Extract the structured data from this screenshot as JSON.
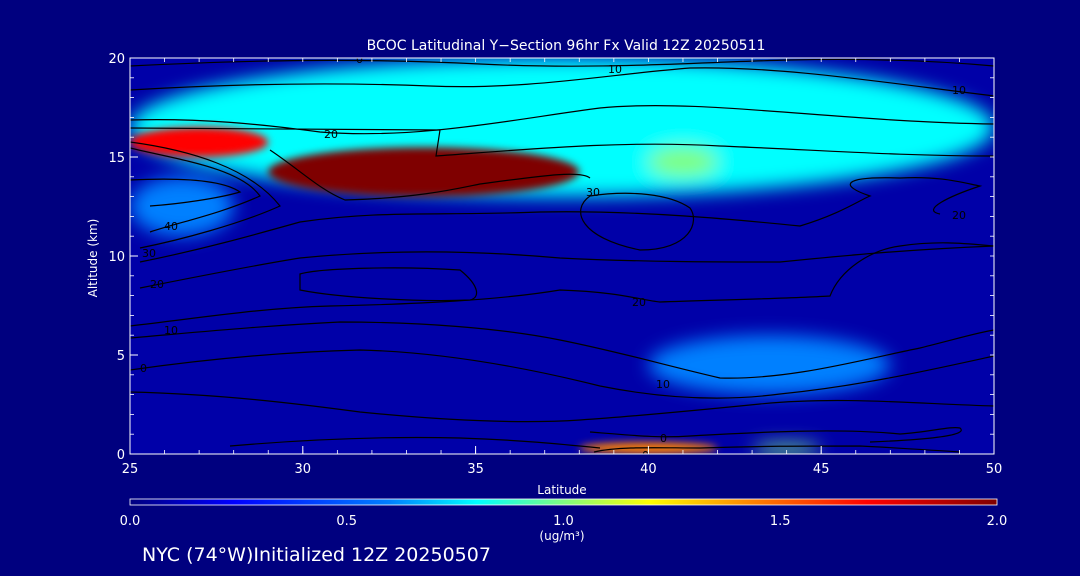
{
  "chart_data": {
    "type": "heatmap",
    "title": "BCOC Latitudinal Y−Section 96hr  Fx Valid 12Z 20250511",
    "xlabel": "Latitude",
    "ylabel": "Altitude (km)",
    "xlim": [
      25,
      50
    ],
    "ylim": [
      0,
      20
    ],
    "x_ticks": [
      "25",
      "30",
      "35",
      "40",
      "45",
      "50"
    ],
    "y_ticks": [
      "0",
      "5",
      "10",
      "15",
      "20"
    ],
    "colorbar": {
      "min": 0.0,
      "max": 2.0,
      "ticks": [
        "0.0",
        "0.5",
        "1.0",
        "1.5",
        "2.0"
      ],
      "units": "(ug/m³)",
      "colors": [
        "#00007f",
        "#0000ff",
        "#0080ff",
        "#00ffff",
        "#80ff80",
        "#ffff00",
        "#ff8000",
        "#ff0000",
        "#7f0000"
      ]
    },
    "concentration_features": [
      {
        "lat_range": [
          29,
          38
        ],
        "alt_range": [
          13,
          15.5
        ],
        "value": 2.0
      },
      {
        "lat_range": [
          25,
          29
        ],
        "alt_range": [
          15,
          16.5
        ],
        "value": 1.8
      },
      {
        "lat_range": [
          25,
          50
        ],
        "alt_range": [
          13,
          20
        ],
        "value": 0.7
      },
      {
        "lat_range": [
          40,
          42
        ],
        "alt_range": [
          14,
          15.5
        ],
        "value": 1.1
      },
      {
        "lat_range": [
          40,
          47
        ],
        "alt_range": [
          3,
          6
        ],
        "value": 0.5
      },
      {
        "lat_range": [
          38,
          42
        ],
        "alt_range": [
          0,
          0.6
        ],
        "value": 1.6
      },
      {
        "lat_range": [
          43,
          45
        ],
        "alt_range": [
          0,
          0.5
        ],
        "value": 1.1
      },
      {
        "lat_range": [
          25,
          28
        ],
        "alt_range": [
          11,
          14
        ],
        "value": 0.5
      }
    ],
    "contour_labels": [
      "0",
      "10",
      "10",
      "20",
      "30",
      "20",
      "40",
      "30",
      "20",
      "10",
      "0",
      "20",
      "10",
      "0",
      "0"
    ]
  },
  "footer": {
    "caption": "NYC (74°W)Initialized 12Z 20250507"
  }
}
